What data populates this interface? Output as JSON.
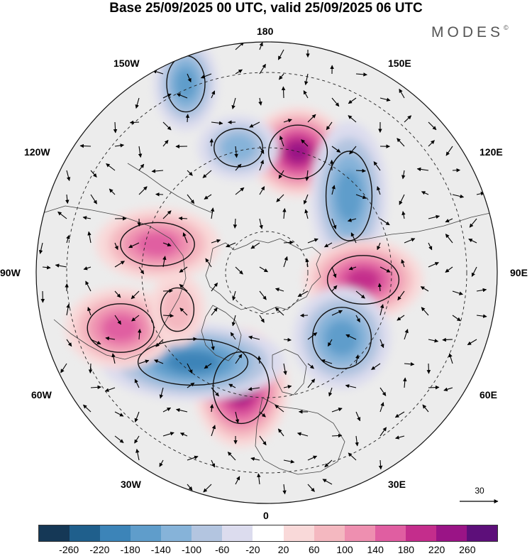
{
  "header": {
    "title": "Base 25/09/2025 00 UTC, valid 25/09/2025 06 UTC",
    "brand": "MODES",
    "brand_mark": "©"
  },
  "map": {
    "projection": "north-polar-stereographic",
    "longitude_labels": {
      "top": "180",
      "top_right": "150E",
      "upper_right": "120E",
      "right": "90E",
      "lower_right": "60E",
      "bottom_right": "30E",
      "bottom": "0",
      "bottom_left": "30W",
      "lower_left": "60W",
      "left": "90W",
      "upper_left": "120W",
      "top_left": "150W"
    },
    "anomaly_centers": [
      {
        "name": "east-siberia-high",
        "sign": "positive",
        "peak": 240
      },
      {
        "name": "pacific-low",
        "sign": "negative",
        "peak": -180
      },
      {
        "name": "aleutian-low",
        "sign": "negative",
        "peak": -140
      },
      {
        "name": "siberia-low",
        "sign": "negative",
        "peak": -160
      },
      {
        "name": "central-siberia-high",
        "sign": "positive",
        "peak": 200
      },
      {
        "name": "west-siberia-low",
        "sign": "negative",
        "peak": -180
      },
      {
        "name": "greenland-sea-high",
        "sign": "positive",
        "peak": 240
      },
      {
        "name": "north-atlantic-low",
        "sign": "negative",
        "peak": -200
      },
      {
        "name": "newfoundland-high",
        "sign": "positive",
        "peak": 180
      },
      {
        "name": "canada-high",
        "sign": "positive",
        "peak": 180
      },
      {
        "name": "alaska-high",
        "sign": "positive",
        "peak": 100
      }
    ],
    "reference_vector": {
      "label": "30"
    }
  },
  "colorbar": {
    "colors": [
      "#153856",
      "#1f5f8c",
      "#3c84b8",
      "#5f9dcb",
      "#86b3d9",
      "#b3c5e0",
      "#dcdcee",
      "#ffffff",
      "#f9d9d9",
      "#f4b8c0",
      "#ee8fb0",
      "#e05ea1",
      "#c42d8c",
      "#9a1486",
      "#5d0f7a"
    ],
    "ticks": [
      "-260",
      "-220",
      "-180",
      "-140",
      "-100",
      "-60",
      "-20",
      "20",
      "60",
      "100",
      "140",
      "180",
      "220",
      "260"
    ]
  }
}
